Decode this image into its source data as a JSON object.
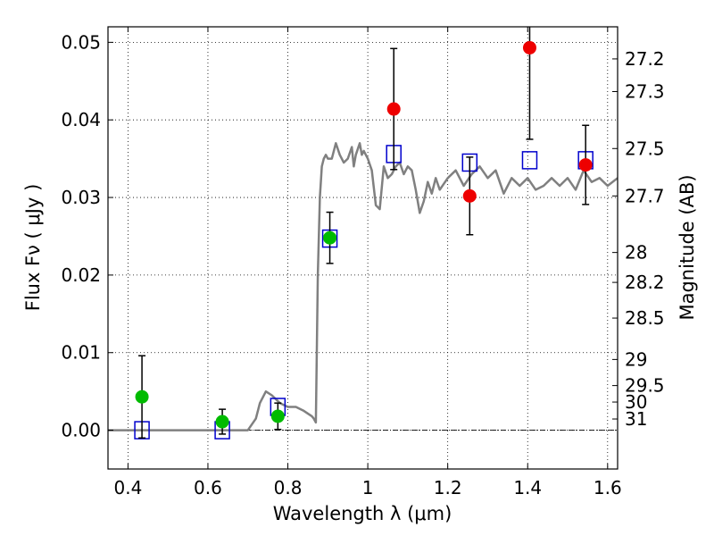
{
  "chart_data": {
    "type": "scatter",
    "title": "",
    "xlabel": "Wavelength  λ (μm)",
    "ylabel": "Flux  Fν  ( μJy )",
    "y2label": "Magnitude (AB)",
    "xlim": [
      0.35,
      1.625
    ],
    "ylim": [
      -0.005,
      0.052
    ],
    "x_ticks": [
      0.4,
      0.6,
      0.8,
      1.0,
      1.2,
      1.4,
      1.6
    ],
    "x_tick_labels": [
      "0.4",
      "0.6",
      "0.8",
      "1",
      "1.2",
      "1.4",
      "1.6"
    ],
    "y_ticks": [
      0.0,
      0.01,
      0.02,
      0.03,
      0.04,
      0.05
    ],
    "y_tick_labels": [
      "0.00",
      "0.01",
      "0.02",
      "0.03",
      "0.04",
      "0.05"
    ],
    "y2_ticks": [
      "27.2",
      "27.3",
      "27.5",
      "27.7",
      "28",
      "28.2",
      "28.5",
      "29",
      "29.5",
      "30",
      "31"
    ],
    "grid": true,
    "legend": "none",
    "colors": {
      "spectrum": "#808080",
      "model": "#0000cc",
      "obs_green": "#00bb00",
      "obs_red": "#ee0000",
      "errorbar": "#000000"
    },
    "series": [
      {
        "kind": "line",
        "x": [
          0.35,
          0.7,
          0.72,
          0.73,
          0.745,
          0.76,
          0.78,
          0.8,
          0.82,
          0.84,
          0.86,
          0.865,
          0.87,
          0.875,
          0.88,
          0.885,
          0.89,
          0.895,
          0.9,
          0.91,
          0.92,
          0.93,
          0.94,
          0.95,
          0.96,
          0.965,
          0.97,
          0.98,
          0.985,
          0.99,
          1.0,
          1.01,
          1.02,
          1.03,
          1.04,
          1.05,
          1.06,
          1.07,
          1.08,
          1.09,
          1.1,
          1.11,
          1.12,
          1.13,
          1.14,
          1.15,
          1.16,
          1.17,
          1.18,
          1.2,
          1.22,
          1.24,
          1.26,
          1.28,
          1.3,
          1.32,
          1.34,
          1.36,
          1.38,
          1.4,
          1.42,
          1.44,
          1.46,
          1.48,
          1.5,
          1.52,
          1.54,
          1.56,
          1.58,
          1.6,
          1.625
        ],
        "y": [
          0.0,
          0.0,
          0.0015,
          0.0035,
          0.005,
          0.0045,
          0.0035,
          0.003,
          0.003,
          0.0025,
          0.0018,
          0.0015,
          0.001,
          0.02,
          0.03,
          0.034,
          0.035,
          0.0355,
          0.035,
          0.035,
          0.037,
          0.0355,
          0.0345,
          0.035,
          0.0365,
          0.034,
          0.0355,
          0.037,
          0.0355,
          0.036,
          0.035,
          0.0335,
          0.029,
          0.0285,
          0.034,
          0.0325,
          0.033,
          0.034,
          0.0345,
          0.033,
          0.034,
          0.0335,
          0.031,
          0.028,
          0.0295,
          0.032,
          0.0305,
          0.0325,
          0.031,
          0.0325,
          0.0335,
          0.0315,
          0.033,
          0.034,
          0.0325,
          0.0335,
          0.0305,
          0.0325,
          0.0315,
          0.0325,
          0.031,
          0.0315,
          0.0325,
          0.0315,
          0.0325,
          0.031,
          0.0335,
          0.032,
          0.0325,
          0.0315,
          0.0325
        ]
      },
      {
        "kind": "model",
        "marker": "open-square",
        "x": [
          0.435,
          0.636,
          0.775,
          0.905,
          1.065,
          1.255,
          1.405,
          1.545
        ],
        "y": [
          0.0,
          0.0,
          0.003,
          0.0247,
          0.0356,
          0.0345,
          0.0348,
          0.0348
        ]
      },
      {
        "kind": "observed-green",
        "marker": "filled-circle",
        "x": [
          0.435,
          0.636,
          0.775,
          0.905
        ],
        "y": [
          0.0043,
          0.0011,
          0.0018,
          0.0248
        ],
        "yerr": [
          0.0053,
          0.0016,
          0.0017,
          0.0033
        ]
      },
      {
        "kind": "observed-red",
        "marker": "filled-circle",
        "x": [
          1.065,
          1.255,
          1.405,
          1.545
        ],
        "y": [
          0.0414,
          0.0302,
          0.0493,
          0.0342
        ],
        "yerr": [
          0.0078,
          0.005,
          0.0118,
          0.0051
        ]
      }
    ]
  }
}
